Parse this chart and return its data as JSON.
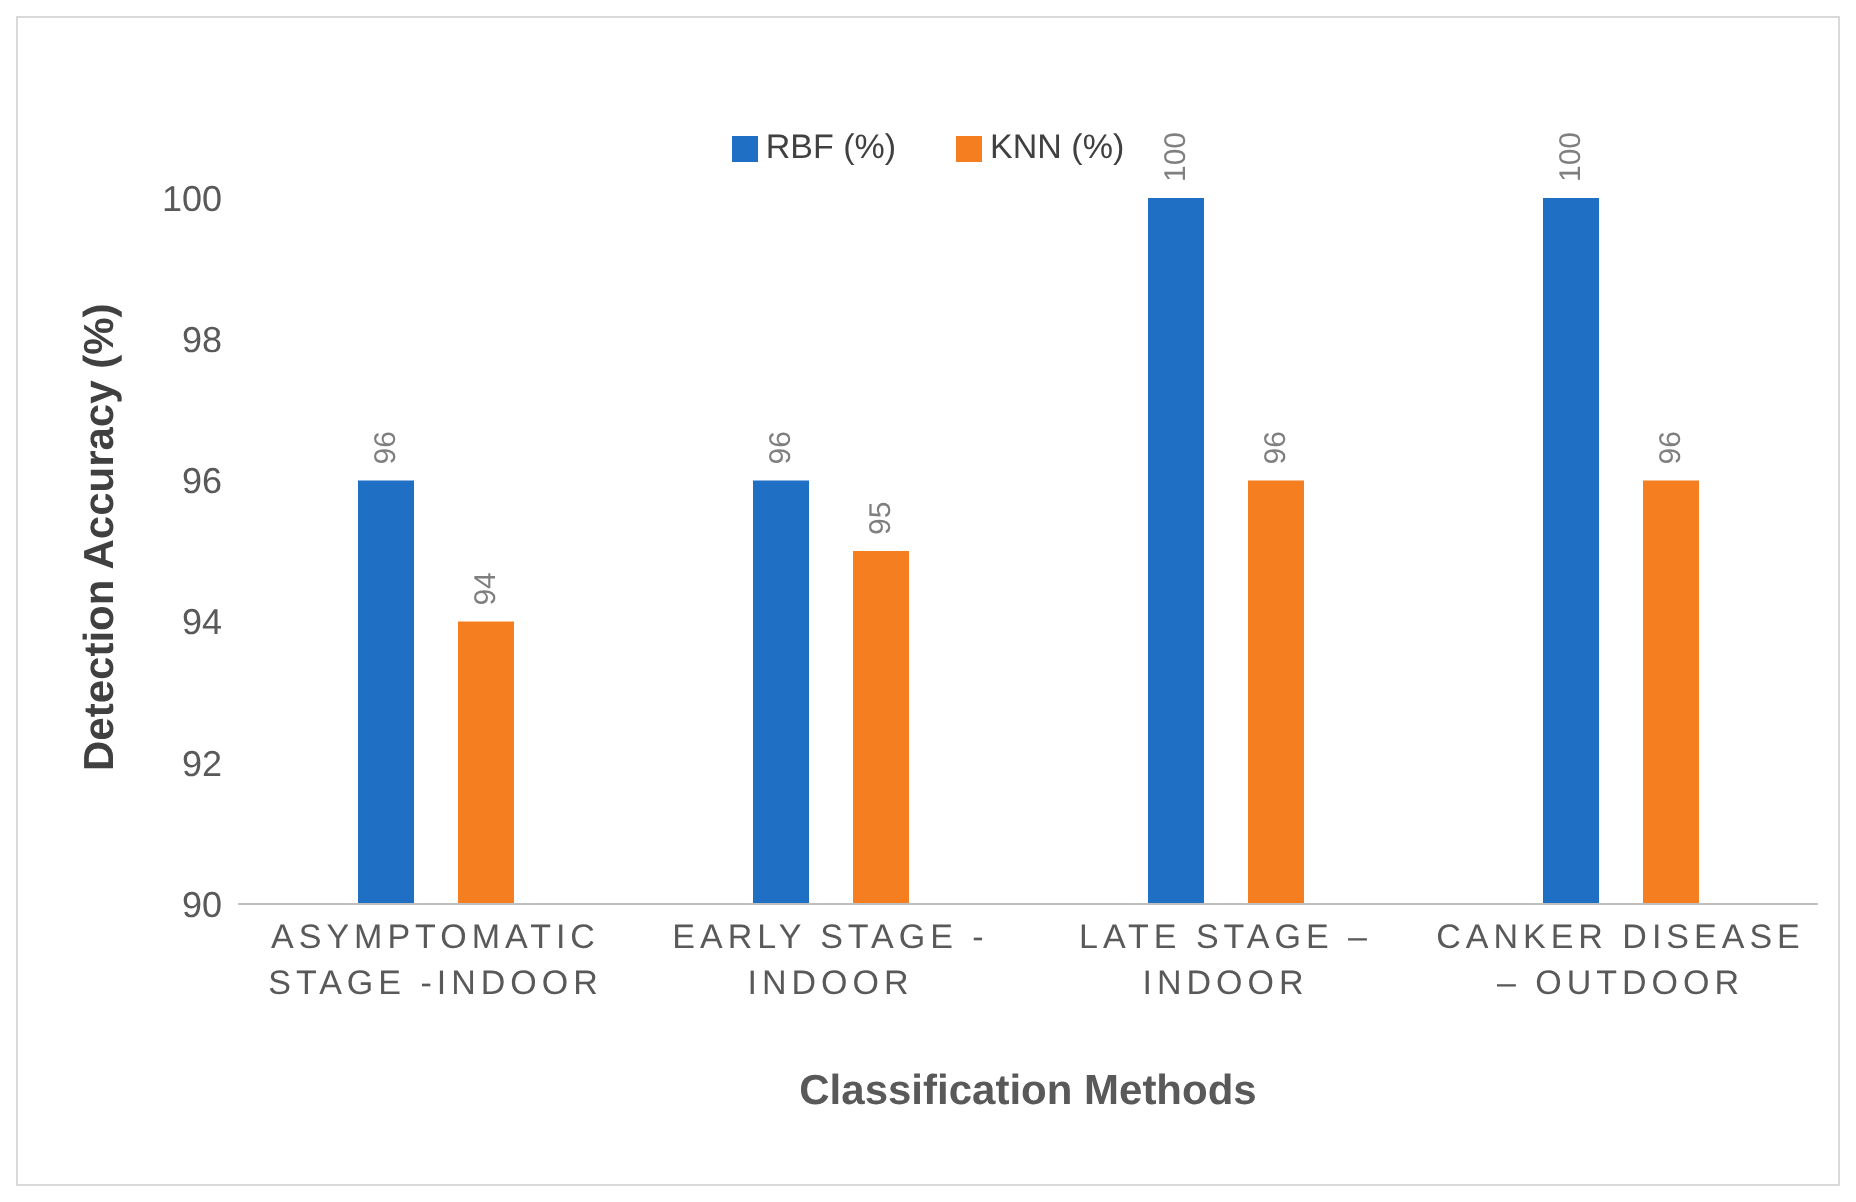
{
  "chart_data": {
    "type": "bar",
    "xlabel": "Classification Methods",
    "ylabel": "Detection Accuracy (%)",
    "categories": [
      "ASYMPTOMATIC STAGE -INDOOR",
      "EARLY STAGE - INDOOR",
      "LATE STAGE – INDOOR",
      "CANKER DISEASE – OUTDOOR"
    ],
    "series": [
      {
        "name": "RBF (%)",
        "color": "#1f6fc5",
        "values": [
          96,
          96,
          100,
          100
        ]
      },
      {
        "name": "KNN (%)",
        "color": "#f57f20",
        "values": [
          94,
          95,
          96,
          96
        ]
      }
    ],
    "ylim": [
      90,
      100
    ],
    "yticks": [
      90,
      92,
      94,
      96,
      98,
      100
    ],
    "legend": "top",
    "data_labels": true
  }
}
